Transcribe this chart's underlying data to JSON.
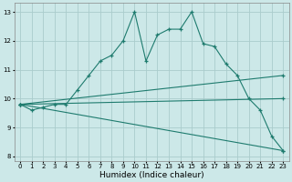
{
  "bg_color": "#cce8e8",
  "grid_color": "#aacccc",
  "line_color": "#1e7b6e",
  "xlabel": "Humidex (Indice chaleur)",
  "xlim": [
    -0.5,
    23.5
  ],
  "ylim": [
    7.85,
    13.3
  ],
  "xticks": [
    0,
    1,
    2,
    3,
    4,
    5,
    6,
    7,
    8,
    9,
    10,
    11,
    12,
    13,
    14,
    15,
    16,
    17,
    18,
    19,
    20,
    21,
    22,
    23
  ],
  "yticks": [
    8,
    9,
    10,
    11,
    12,
    13
  ],
  "line1": {
    "x": [
      0,
      1,
      2,
      3,
      4,
      5,
      6,
      7,
      8,
      9,
      10,
      11,
      12,
      13,
      14,
      15,
      16,
      17,
      18,
      19,
      20,
      21,
      22,
      23
    ],
    "y": [
      9.8,
      9.6,
      9.7,
      9.8,
      9.8,
      10.3,
      10.8,
      11.3,
      11.5,
      12.0,
      13.0,
      11.3,
      12.2,
      12.4,
      12.4,
      13.0,
      11.9,
      11.8,
      11.2,
      10.8,
      10.0,
      9.6,
      8.7,
      8.2
    ]
  },
  "line2": {
    "x": [
      0,
      23
    ],
    "y": [
      9.8,
      8.2
    ]
  },
  "line3": {
    "x": [
      0,
      23
    ],
    "y": [
      9.8,
      10.8
    ]
  },
  "line4": {
    "x": [
      0,
      23
    ],
    "y": [
      9.8,
      10.0
    ]
  }
}
